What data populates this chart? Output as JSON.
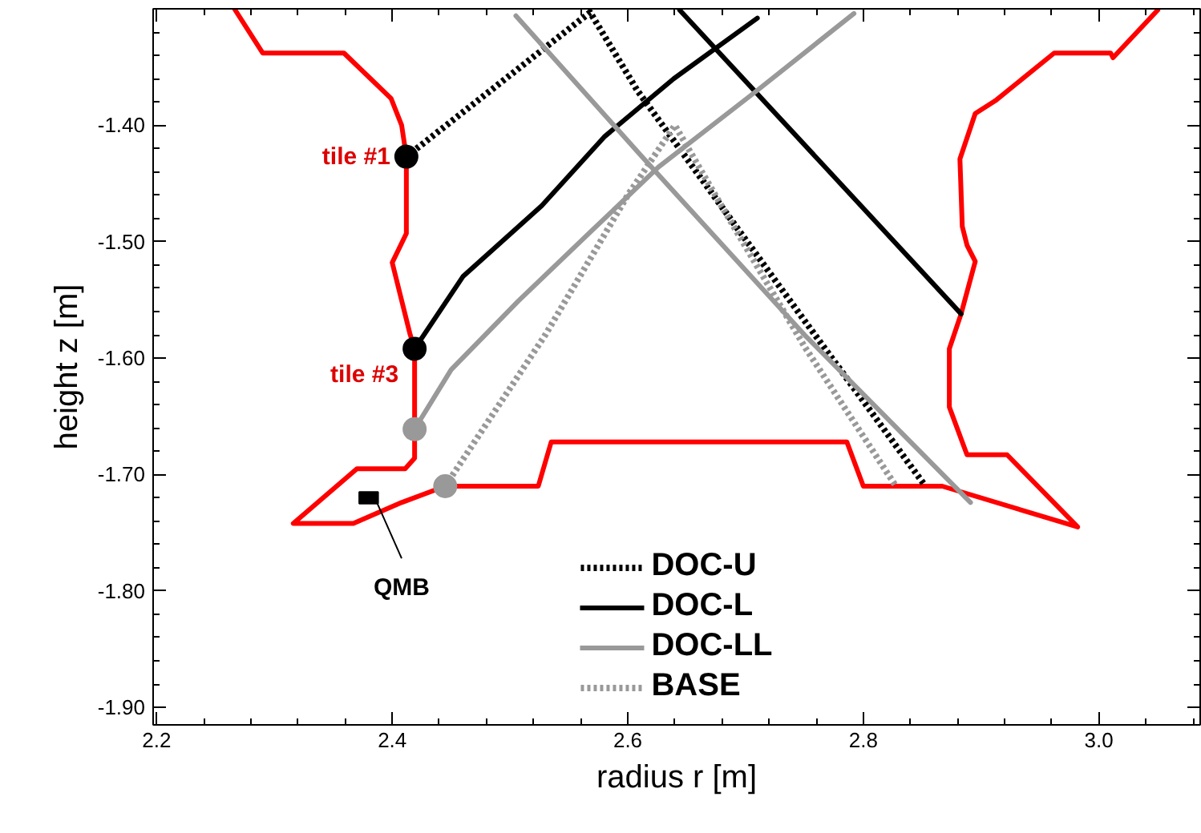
{
  "chart_data": {
    "type": "line",
    "xlabel": "radius r [m]",
    "ylabel": "height z [m]",
    "xlim": [
      2.197,
      3.086
    ],
    "ylim": [
      -1.915,
      -1.3
    ],
    "xticks": [
      2.2,
      2.4,
      2.6,
      2.8,
      {
        "value": 3.0,
        "label": "3.0"
      }
    ],
    "yticks": [
      {
        "value": -1.4,
        "label": "-1.40"
      },
      {
        "value": -1.5,
        "label": "-1.50"
      },
      {
        "value": -1.6,
        "label": "-1.60"
      },
      {
        "value": -1.7,
        "label": "-1.70"
      },
      {
        "value": -1.8,
        "label": "-1.80"
      },
      {
        "value": -1.9,
        "label": "-1.90"
      }
    ],
    "grid": false,
    "legend": "bottom",
    "series": [
      {
        "color": "#ff0000",
        "line_style": "solid",
        "x": [
          2.266,
          2.29,
          2.359,
          2.399,
          2.408,
          2.412,
          2.412,
          2.4,
          2.415,
          2.419,
          2.419,
          2.411,
          2.37,
          2.316,
          2.367,
          2.408,
          2.445,
          2.524,
          2.535,
          2.786,
          2.8,
          2.867,
          2.982,
          2.922,
          2.888,
          2.873,
          2.873,
          2.883,
          2.895,
          2.888,
          2.884,
          2.882,
          2.895,
          2.912,
          2.962,
          3.01,
          3.012,
          3.05
        ],
        "values": [
          -1.3,
          -1.338,
          -1.338,
          -1.377,
          -1.4,
          -1.427,
          -1.493,
          -1.518,
          -1.579,
          -1.592,
          -1.686,
          -1.695,
          -1.695,
          -1.742,
          -1.742,
          -1.724,
          -1.71,
          -1.71,
          -1.672,
          -1.672,
          -1.71,
          -1.71,
          -1.745,
          -1.683,
          -1.683,
          -1.642,
          -1.592,
          -1.562,
          -1.517,
          -1.503,
          -1.487,
          -1.429,
          -1.39,
          -1.379,
          -1.338,
          -1.338,
          -1.342,
          -1.301
        ]
      },
      {
        "name": "DOC-U",
        "color": "#000000",
        "line_style": "dotted",
        "x": [
          2.412,
          2.49,
          2.568,
          2.608,
          2.73,
          2.852
        ],
        "values": [
          -1.427,
          -1.365,
          -1.303,
          -1.37,
          -1.54,
          -1.709
        ]
      },
      {
        "name": "DOC-L",
        "color": "#000000",
        "line_style": "solid",
        "x": [
          2.419,
          2.46,
          2.527,
          2.58,
          2.639,
          2.71,
          null,
          2.644,
          2.883
        ],
        "values": [
          -1.592,
          -1.53,
          -1.469,
          -1.41,
          -1.36,
          -1.308,
          null,
          -1.301,
          -1.562
        ]
      },
      {
        "name": "DOC-LL",
        "color": "#999999",
        "line_style": "solid",
        "x": [
          2.419,
          2.45,
          2.507,
          2.57,
          2.626,
          2.71,
          2.792,
          null,
          2.505,
          2.612,
          2.75,
          2.891
        ],
        "values": [
          -1.661,
          -1.61,
          -1.551,
          -1.49,
          -1.436,
          -1.37,
          -1.304,
          null,
          -1.306,
          -1.427,
          -1.58,
          -1.724
        ]
      },
      {
        "name": "BASE",
        "color": "#999999",
        "line_style": "dotted",
        "x": [
          2.445,
          2.53,
          2.6,
          2.64,
          2.68,
          2.75,
          2.827
        ],
        "values": [
          -1.71,
          -1.58,
          -1.46,
          -1.4,
          -1.47,
          -1.59,
          -1.709
        ]
      },
      {
        "type": "scatter",
        "color": "#000000",
        "marker": "circle",
        "x": [
          2.412,
          2.419
        ],
        "values": [
          -1.427,
          -1.592
        ]
      },
      {
        "type": "scatter",
        "color": "#999999",
        "marker": "circle",
        "x": [
          2.419,
          2.445
        ],
        "values": [
          -1.661,
          -1.71
        ]
      }
    ],
    "annotations": [
      {
        "text": "tile #1",
        "x": 2.412,
        "y": -1.427
      },
      {
        "text": "tile #3",
        "x": 2.419,
        "y": -1.592
      },
      {
        "text": "QMB",
        "x": 2.38,
        "y": -1.72
      }
    ]
  }
}
